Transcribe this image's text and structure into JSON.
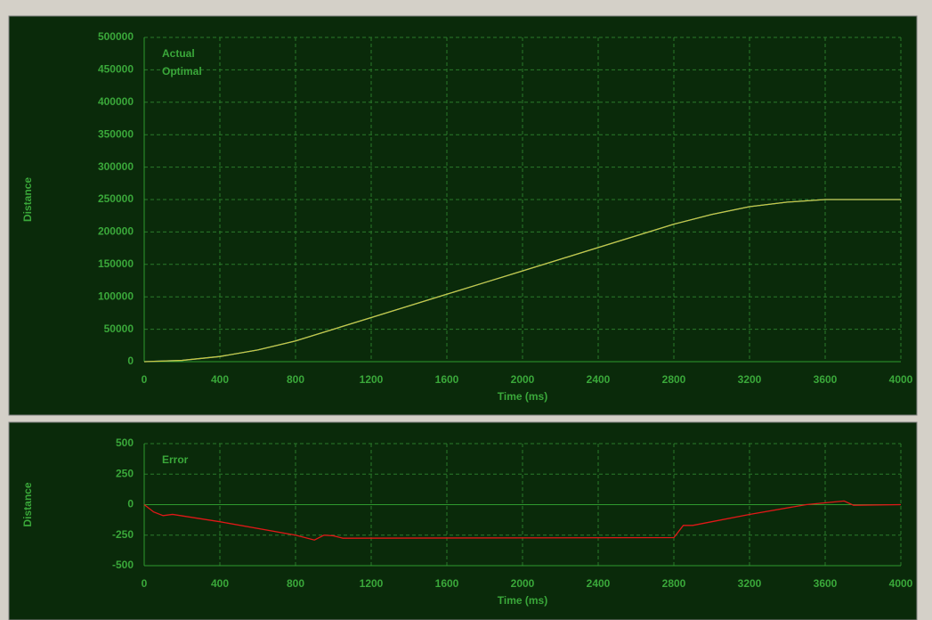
{
  "chart_data": [
    {
      "type": "line",
      "x_label": "Time (ms)",
      "y_label": "Distance",
      "legend": "upper left",
      "grid": true,
      "x": [
        0,
        200,
        400,
        600,
        800,
        1000,
        1200,
        1400,
        1600,
        1800,
        2000,
        2200,
        2400,
        2600,
        2800,
        3000,
        3200,
        3400,
        3600,
        3800,
        4000
      ],
      "series": [
        {
          "name": "Actual",
          "color": "#2a8cff",
          "values": [
            0,
            2000,
            8000,
            18000,
            32000,
            50000,
            68000,
            86000,
            104000,
            122000,
            140000,
            158000,
            176000,
            194000,
            212000,
            227000,
            239000,
            246000,
            250000,
            250000,
            250000
          ]
        },
        {
          "name": "Optimal",
          "color": "#c8c83c",
          "values": [
            0,
            2000,
            8000,
            18000,
            32000,
            50000,
            68000,
            86000,
            104000,
            122000,
            140000,
            158000,
            176000,
            194000,
            212000,
            227000,
            239000,
            246000,
            250000,
            250000,
            250000
          ]
        }
      ],
      "xlim": [
        0,
        4000
      ],
      "xticks": [
        0,
        400,
        800,
        1200,
        1600,
        2000,
        2400,
        2800,
        3200,
        3600,
        4000
      ],
      "ylim": [
        0,
        500000
      ],
      "yticks": [
        0,
        50000,
        100000,
        150000,
        200000,
        250000,
        300000,
        350000,
        400000,
        450000,
        500000
      ]
    },
    {
      "type": "line",
      "x_label": "Time (ms)",
      "y_label": "Distance",
      "legend": "upper left",
      "grid": true,
      "x": [
        0,
        50,
        100,
        150,
        400,
        800,
        900,
        950,
        1000,
        1050,
        2800,
        2850,
        2900,
        3000,
        3200,
        3500,
        3700,
        3750,
        4000
      ],
      "series": [
        {
          "name": "Error",
          "color": "#e01818",
          "values": [
            0,
            -60,
            -90,
            -80,
            -140,
            -250,
            -290,
            -250,
            -255,
            -275,
            -270,
            -170,
            -170,
            -140,
            -80,
            0,
            30,
            -5,
            0
          ]
        }
      ],
      "xlim": [
        0,
        4000
      ],
      "xticks": [
        0,
        400,
        800,
        1200,
        1600,
        2000,
        2400,
        2800,
        3200,
        3600,
        4000
      ],
      "ylim": [
        -500,
        500
      ],
      "yticks": [
        -500,
        -250,
        0,
        250,
        500
      ]
    }
  ]
}
